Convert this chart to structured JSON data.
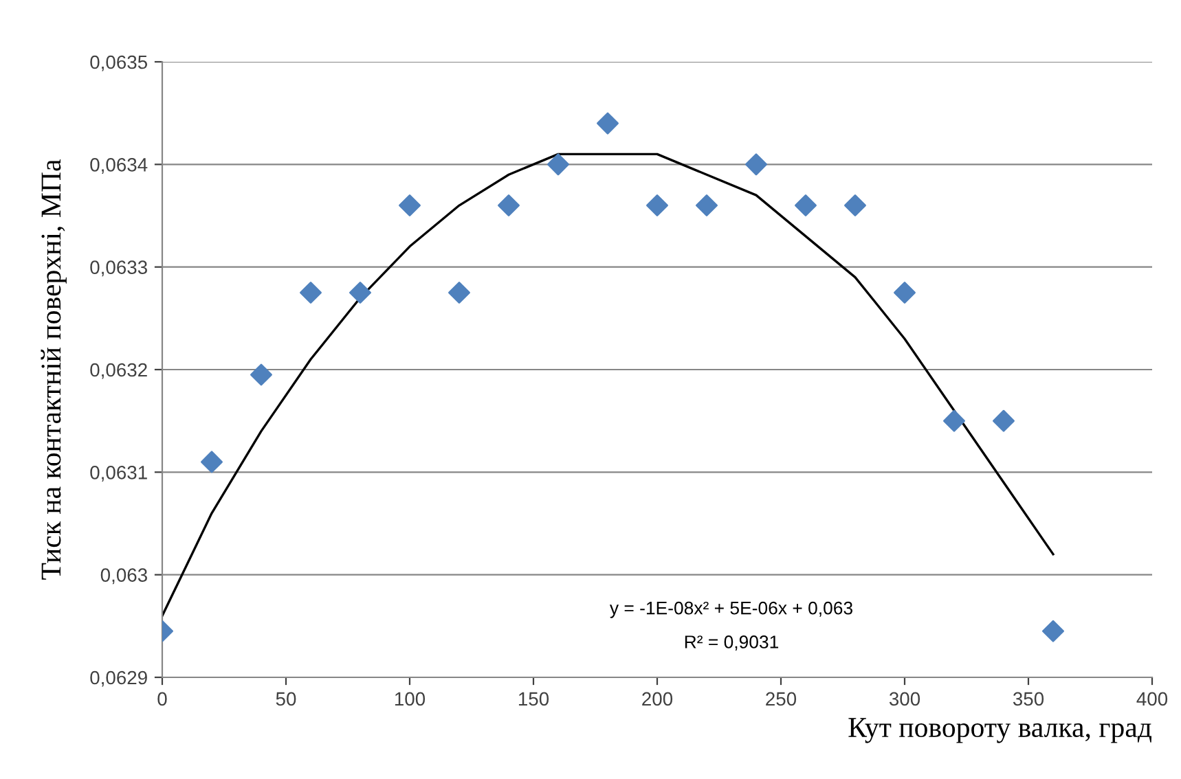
{
  "chart_data": {
    "type": "scatter",
    "xlabel": "Кут повороту валка, град",
    "ylabel": "Тиск на контактній поверхні, МПа",
    "x": [
      0,
      20,
      40,
      60,
      80,
      100,
      120,
      140,
      160,
      180,
      200,
      220,
      240,
      260,
      280,
      300,
      320,
      340,
      360
    ],
    "series": [
      {
        "color": "#4f81bd",
        "marker": "diamond",
        "values": [
          0.062945,
          0.06311,
          0.063195,
          0.063275,
          0.063275,
          0.06336,
          0.063275,
          0.06336,
          0.0634,
          0.06344,
          0.06336,
          0.06336,
          0.0634,
          0.06336,
          0.06336,
          0.063275,
          0.06315,
          0.06315,
          0.062945
        ]
      },
      {
        "type": "line",
        "color": "#000000",
        "marker": "none",
        "line_style": "solid",
        "x": [
          0,
          20,
          40,
          60,
          80,
          100,
          120,
          140,
          160,
          183,
          200,
          220,
          240,
          260,
          280,
          300,
          320,
          340,
          360
        ],
        "values": [
          0.06296,
          0.06306,
          0.06314,
          0.06321,
          0.06327,
          0.06332,
          0.06336,
          0.06339,
          0.06341,
          0.06341,
          0.06341,
          0.06339,
          0.06337,
          0.06333,
          0.06329,
          0.06323,
          0.06316,
          0.06309,
          0.06302
        ]
      }
    ],
    "xlim": [
      0,
      400
    ],
    "xticks": [
      0,
      50,
      100,
      150,
      200,
      250,
      300,
      350,
      400
    ],
    "ylim": [
      0.0629,
      0.0635
    ],
    "yticks": [
      {
        "value": 0.0629,
        "label": "0,0629"
      },
      {
        "value": 0.063,
        "label": "0,063"
      },
      {
        "value": 0.0631,
        "label": "0,0631"
      },
      {
        "value": 0.0632,
        "label": "0,0632"
      },
      {
        "value": 0.0633,
        "label": "0,0633"
      },
      {
        "value": 0.0634,
        "label": "0,0634"
      },
      {
        "value": 0.0635,
        "label": "0,0635"
      }
    ],
    "grid": "y",
    "annotations": [
      "y = -1E-08x² + 5E-06x + 0,063",
      "R² = 0,9031"
    ]
  }
}
